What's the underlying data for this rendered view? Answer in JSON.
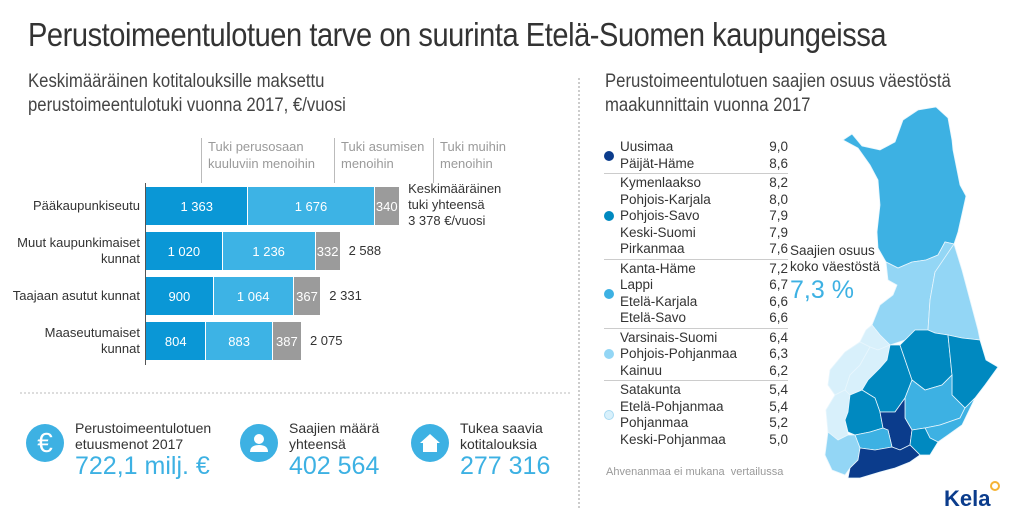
{
  "title": "Perustoimeentulotuen tarve on suurinta Etelä-Suomen kaupungeissa",
  "left_subtitle": [
    "Keskimääräinen kotitalouksille maksettu",
    "perustoimeentulotuki vuonna 2017, €/vuosi"
  ],
  "right_subtitle": [
    "Perustoimeentulotuen saajien osuus väestöstä",
    "maakunnittain vuonna 2017"
  ],
  "chart_data": [
    {
      "type": "bar",
      "orientation": "horizontal",
      "stacked": true,
      "title": "Keskimääräinen kotitalouksille maksettu perustoimeentulotuki vuonna 2017, €/vuosi",
      "categories": [
        "Pääkaupunkiseutu",
        "Muut kaupunkimaiset kunnat",
        "Taajaan asutut kunnat",
        "Maaseutumaiset kunnat"
      ],
      "series": [
        {
          "name": "Tuki perusosaan kuuluviin menoihin",
          "color": "#0a97d6",
          "values": [
            1363,
            1020,
            900,
            804
          ],
          "labels": [
            "1 363",
            "1 020",
            "900",
            "804"
          ]
        },
        {
          "name": "Tuki asumisen menoihin",
          "color": "#3db3e5",
          "values": [
            1676,
            1236,
            1064,
            883
          ],
          "labels": [
            "1 676",
            "1 236",
            "1 064",
            "883"
          ]
        },
        {
          "name": "Tuki muihin menoihin",
          "color": "#9b9b9b",
          "values": [
            340,
            332,
            367,
            387
          ],
          "labels": [
            "340",
            "332",
            "367",
            "387"
          ]
        }
      ],
      "series_label_lines": [
        [
          "Tuki perusosaan",
          "kuuluviin menoihin"
        ],
        [
          "Tuki asumisen",
          "menoihin"
        ],
        [
          "Tuki muihin",
          "menoihin"
        ]
      ],
      "category_lines": [
        [
          "Pääkaupunkiseutu"
        ],
        [
          "Muut kaupunkimaiset",
          "kunnat"
        ],
        [
          "Taajaan asutut kunnat"
        ],
        [
          "Maaseutumaiset",
          "kunnat"
        ]
      ],
      "totals": [
        3378,
        2588,
        2331,
        2075
      ],
      "total_labels": [
        "Keskimääräinen\ntuki yhteensä\n3 378 €/vuosi",
        "2 588",
        "2 331",
        "2 075"
      ]
    },
    {
      "type": "choropleth",
      "title": "Perustoimeentulotuen saajien osuus väestöstä maakunnittain vuonna 2017",
      "groups": [
        {
          "color": "#0b3c8c",
          "items": [
            [
              "Uusimaa",
              "9,0"
            ],
            [
              "Päijät-Häme",
              "8,6"
            ]
          ]
        },
        {
          "color": "#0089c0",
          "items": [
            [
              "Kymenlaakso",
              "8,2"
            ],
            [
              "Pohjois-Karjala",
              "8,0"
            ],
            [
              "Pohjois-Savo",
              "7,9"
            ],
            [
              "Keski-Suomi",
              "7,9"
            ],
            [
              "Pirkanmaa",
              "7,6"
            ]
          ]
        },
        {
          "color": "#3db1e3",
          "items": [
            [
              "Kanta-Häme",
              "7,2"
            ],
            [
              "Lappi",
              "6,7"
            ],
            [
              "Etelä-Karjala",
              "6,6"
            ],
            [
              "Etelä-Savo",
              "6,6"
            ]
          ]
        },
        {
          "color": "#93d6f5",
          "items": [
            [
              "Varsinais-Suomi",
              "6,4"
            ],
            [
              "Pohjois-Pohjanmaa",
              "6,3"
            ],
            [
              "Kainuu",
              "6,2"
            ]
          ]
        },
        {
          "color": "#d8f0fb",
          "items": [
            [
              "Satakunta",
              "5,4"
            ],
            [
              "Etelä-Pohjanmaa",
              "5,4"
            ],
            [
              "Pohjanmaa",
              "5,2"
            ],
            [
              "Keski-Pohjanmaa",
              "5,0"
            ]
          ]
        }
      ],
      "total_label": [
        "Saajien osuus",
        "koko väestöstä"
      ],
      "total_value": "7,3 %",
      "note": "Ahvenanmaa ei mukana  vertailussa"
    }
  ],
  "stats": [
    {
      "icon": "euro-icon",
      "label": [
        "Perustoimeentulotuen",
        "etuusmenot 2017"
      ],
      "value": "722,1 milj. €"
    },
    {
      "icon": "person-icon",
      "label": [
        "Saajien määrä",
        "yhteensä"
      ],
      "value": "402 564"
    },
    {
      "icon": "house-icon",
      "label": [
        "Tukea saavia",
        "kotitalouksia"
      ],
      "value": "277 316"
    }
  ],
  "logo": "Kela",
  "colors": {
    "accent": "#3db1e3",
    "brand": "#0b3c8c"
  }
}
